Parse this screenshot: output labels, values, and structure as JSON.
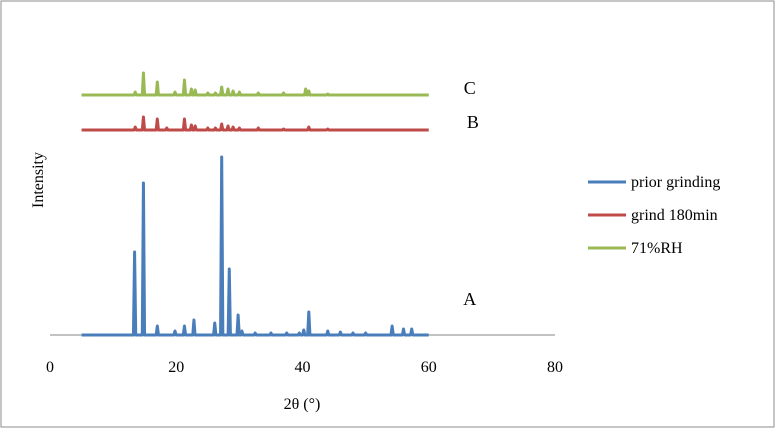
{
  "chart_data": {
    "type": "line",
    "xlabel": "2θ (°)",
    "ylabel": "Intensity",
    "xlim": [
      0,
      80
    ],
    "x_ticks": [
      "0",
      "20",
      "40",
      "60",
      "80"
    ],
    "grid": false,
    "legend_position": "right",
    "series": [
      {
        "name": "prior grinding",
        "color": "#4a7ebb",
        "baseline": 0,
        "peaks": [
          {
            "x": 13.4,
            "y": 83
          },
          {
            "x": 14.8,
            "y": 152
          },
          {
            "x": 17.0,
            "y": 9
          },
          {
            "x": 19.8,
            "y": 4
          },
          {
            "x": 21.3,
            "y": 9
          },
          {
            "x": 22.8,
            "y": 15
          },
          {
            "x": 26.1,
            "y": 12
          },
          {
            "x": 27.2,
            "y": 178
          },
          {
            "x": 28.4,
            "y": 66
          },
          {
            "x": 29.8,
            "y": 20
          },
          {
            "x": 30.4,
            "y": 4
          },
          {
            "x": 32.5,
            "y": 2
          },
          {
            "x": 35.0,
            "y": 2
          },
          {
            "x": 37.5,
            "y": 2
          },
          {
            "x": 39.5,
            "y": 2
          },
          {
            "x": 40.2,
            "y": 5
          },
          {
            "x": 41.0,
            "y": 23
          },
          {
            "x": 44.0,
            "y": 4
          },
          {
            "x": 46.0,
            "y": 3
          },
          {
            "x": 48.0,
            "y": 2
          },
          {
            "x": 50.0,
            "y": 2
          },
          {
            "x": 54.2,
            "y": 9
          },
          {
            "x": 56.0,
            "y": 6
          },
          {
            "x": 57.3,
            "y": 6
          }
        ]
      },
      {
        "name": "grind 180min",
        "color": "#be4b48",
        "baseline": 205,
        "peaks": [
          {
            "x": 13.5,
            "y": 3
          },
          {
            "x": 14.8,
            "y": 13
          },
          {
            "x": 17.0,
            "y": 11
          },
          {
            "x": 18.5,
            "y": 2
          },
          {
            "x": 21.3,
            "y": 11
          },
          {
            "x": 22.4,
            "y": 5
          },
          {
            "x": 23.0,
            "y": 4
          },
          {
            "x": 25.0,
            "y": 2
          },
          {
            "x": 26.2,
            "y": 2
          },
          {
            "x": 27.2,
            "y": 6
          },
          {
            "x": 28.2,
            "y": 4
          },
          {
            "x": 29.0,
            "y": 3
          },
          {
            "x": 30.0,
            "y": 2
          },
          {
            "x": 33.0,
            "y": 2
          },
          {
            "x": 37.0,
            "y": 1
          },
          {
            "x": 41.0,
            "y": 3
          },
          {
            "x": 44.0,
            "y": 1
          }
        ]
      },
      {
        "name": "71%RH",
        "color": "#98b954",
        "baseline": 240,
        "peaks": [
          {
            "x": 13.5,
            "y": 3
          },
          {
            "x": 14.8,
            "y": 22
          },
          {
            "x": 17.0,
            "y": 13
          },
          {
            "x": 19.8,
            "y": 3
          },
          {
            "x": 21.3,
            "y": 15
          },
          {
            "x": 22.4,
            "y": 6
          },
          {
            "x": 23.0,
            "y": 5
          },
          {
            "x": 25.0,
            "y": 2
          },
          {
            "x": 26.2,
            "y": 2
          },
          {
            "x": 27.2,
            "y": 8
          },
          {
            "x": 28.2,
            "y": 6
          },
          {
            "x": 29.0,
            "y": 4
          },
          {
            "x": 30.0,
            "y": 3
          },
          {
            "x": 33.0,
            "y": 2
          },
          {
            "x": 37.0,
            "y": 2
          },
          {
            "x": 40.5,
            "y": 6
          },
          {
            "x": 41.0,
            "y": 4
          },
          {
            "x": 44.0,
            "y": 1
          }
        ]
      }
    ],
    "annotations": [
      {
        "text": "A",
        "x": 66.5,
        "y": 30
      },
      {
        "text": "B",
        "x": 67,
        "y": 207
      },
      {
        "text": "C",
        "x": 66.5,
        "y": 241
      }
    ]
  }
}
